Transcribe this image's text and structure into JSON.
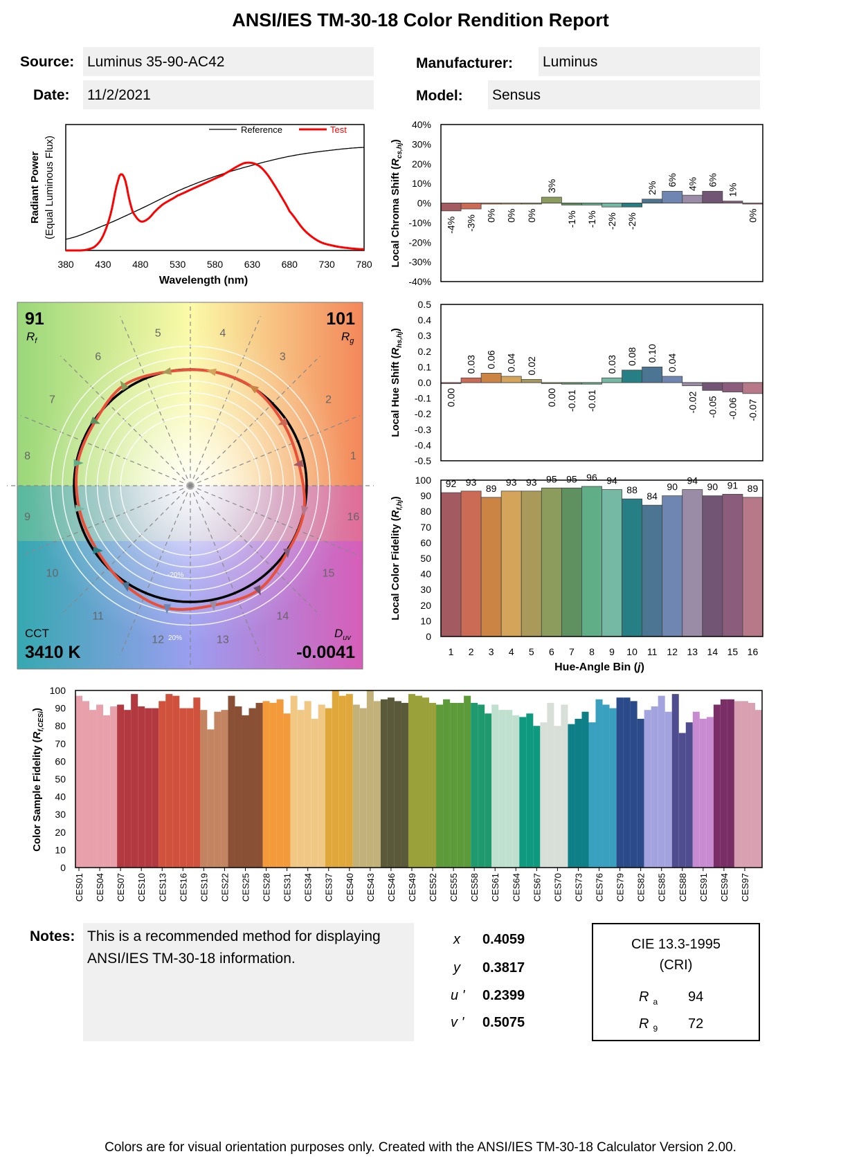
{
  "header": {
    "title": "ANSI/IES TM-30-18 Color Rendition Report",
    "source_label": "Source:",
    "source_value": "Luminus 35-90-AC42",
    "date_label": "Date:",
    "date_value": "11/2/2021",
    "manufacturer_label": "Manufacturer:",
    "manufacturer_value": "Luminus",
    "model_label": "Model:",
    "model_value": "Sensus"
  },
  "notes": {
    "label": "Notes:",
    "text": "This is a recommended method for displaying ANSI/IES TM-30-18 information."
  },
  "chromaticity": {
    "x_label": "x",
    "x_value": "0.4059",
    "y_label": "y",
    "y_value": "0.3817",
    "u_label": "u '",
    "u_value": "0.2399",
    "v_label": "v '",
    "v_value": "0.5075"
  },
  "cri_box": {
    "title": "CIE 13.3-1995",
    "subtitle": "(CRI)",
    "ra_label": "R",
    "ra_sub": "a",
    "ra_value": "94",
    "r9_label": "R",
    "r9_sub": "9",
    "r9_value": "72"
  },
  "footer": "Colors are for visual orientation purposes only. Created with the ANSI/IES TM-30-18 Calculator Version 2.00.",
  "vector_graphic": {
    "rf_value": "91",
    "rf_label": "R",
    "rf_sub": "f",
    "rg_value": "101",
    "rg_label": "R",
    "rg_sub": "g",
    "cct_label": "CCT",
    "cct_value": "3410 K",
    "duv_label": "D",
    "duv_sub": "uv",
    "duv_value": "-0.0041",
    "ring_labels": [
      "-20%",
      "20%"
    ],
    "bin_numbers": [
      "1",
      "2",
      "3",
      "4",
      "5",
      "6",
      "7",
      "8",
      "9",
      "10",
      "11",
      "12",
      "13",
      "14",
      "15",
      "16"
    ]
  },
  "chart_data": [
    {
      "type": "line",
      "id": "spd",
      "xlabel": "Wavelength (nm)",
      "ylabel": "Radiant Power",
      "ylabel2": "(Equal Luminous Flux)",
      "xlim": [
        380,
        780
      ],
      "xticks": [
        "380",
        "430",
        "480",
        "530",
        "580",
        "630",
        "680",
        "730",
        "780"
      ],
      "series": [
        {
          "name": "Reference",
          "color": "#000000",
          "x": [
            380,
            430,
            480,
            530,
            580,
            630,
            680,
            730,
            780
          ],
          "y": [
            0.1,
            0.22,
            0.37,
            0.53,
            0.66,
            0.76,
            0.84,
            0.89,
            0.92
          ]
        },
        {
          "name": "Test",
          "color": "#ff0000",
          "x": [
            380,
            400,
            410,
            420,
            430,
            440,
            450,
            455,
            460,
            465,
            470,
            480,
            490,
            500,
            510,
            520,
            530,
            550,
            570,
            590,
            600,
            610,
            620,
            630,
            640,
            650,
            660,
            670,
            680,
            700,
            720,
            740,
            760,
            780
          ],
          "y": [
            0,
            0,
            0.01,
            0.04,
            0.13,
            0.32,
            0.62,
            0.68,
            0.62,
            0.46,
            0.34,
            0.26,
            0.28,
            0.35,
            0.41,
            0.45,
            0.49,
            0.55,
            0.61,
            0.67,
            0.71,
            0.75,
            0.78,
            0.78,
            0.75,
            0.68,
            0.58,
            0.47,
            0.35,
            0.18,
            0.08,
            0.04,
            0.02,
            0.01
          ]
        }
      ]
    },
    {
      "type": "bar",
      "id": "chroma_shift",
      "ylabel": "Local Chroma Shift (Rcs,hj)",
      "ylim": [
        -40,
        40
      ],
      "yticks": [
        "40%",
        "30%",
        "20%",
        "10%",
        "0%",
        "-10%",
        "-20%",
        "-30%",
        "-40%"
      ],
      "categories": [
        "1",
        "2",
        "3",
        "4",
        "5",
        "6",
        "7",
        "8",
        "9",
        "10",
        "11",
        "12",
        "13",
        "14",
        "15",
        "16"
      ],
      "values": [
        -4,
        -3,
        0,
        0,
        0,
        3,
        -1,
        -1,
        -2,
        -2,
        2,
        6,
        4,
        6,
        1,
        0
      ],
      "labels": [
        "-4%",
        "-3%",
        "0%",
        "0%",
        "0%",
        "3%",
        "-1%",
        "-1%",
        "-2%",
        "-2%",
        "2%",
        "6%",
        "4%",
        "6%",
        "1%",
        "0%"
      ]
    },
    {
      "type": "bar",
      "id": "hue_shift",
      "ylabel": "Local Hue Shift (Rhs,hj)",
      "ylim": [
        -0.5,
        0.5
      ],
      "yticks": [
        "0.5",
        "0.4",
        "0.3",
        "0.2",
        "0.1",
        "0.0",
        "-0.1",
        "-0.2",
        "-0.3",
        "-0.4",
        "-0.5"
      ],
      "categories": [
        "1",
        "2",
        "3",
        "4",
        "5",
        "6",
        "7",
        "8",
        "9",
        "10",
        "11",
        "12",
        "13",
        "14",
        "15",
        "16"
      ],
      "values": [
        0.0,
        0.03,
        0.06,
        0.04,
        0.02,
        0.0,
        -0.01,
        -0.01,
        0.03,
        0.08,
        0.1,
        0.04,
        -0.02,
        -0.05,
        -0.06,
        -0.07
      ],
      "labels": [
        "0.00",
        "0.03",
        "0.06",
        "0.04",
        "0.02",
        "0.00",
        "-0.01",
        "-0.01",
        "0.03",
        "0.08",
        "0.10",
        "0.04",
        "-0.02",
        "-0.05",
        "-0.06",
        "-0.07"
      ]
    },
    {
      "type": "bar",
      "id": "local_fidelity",
      "ylabel": "Local Color Fidelity (Rf,hj)",
      "xlabel": "Hue-Angle Bin (j)",
      "ylim": [
        0,
        100
      ],
      "yticks": [
        "100",
        "90",
        "80",
        "70",
        "60",
        "50",
        "40",
        "30",
        "20",
        "10",
        "0"
      ],
      "categories": [
        "1",
        "2",
        "3",
        "4",
        "5",
        "6",
        "7",
        "8",
        "9",
        "10",
        "11",
        "12",
        "13",
        "14",
        "15",
        "16"
      ],
      "values": [
        92,
        93,
        89,
        93,
        93,
        95,
        95,
        96,
        94,
        88,
        84,
        90,
        94,
        90,
        91,
        89
      ],
      "labels": [
        "92",
        "93",
        "89",
        "93",
        "93",
        "95",
        "95",
        "96",
        "94",
        "88",
        "84",
        "90",
        "94",
        "90",
        "91",
        "89"
      ]
    },
    {
      "type": "bar",
      "id": "ces_fidelity",
      "ylabel": "Color Sample Fidelity (Rf,CESi)",
      "ylim": [
        0,
        100
      ],
      "yticks": [
        "100",
        "90",
        "80",
        "70",
        "60",
        "50",
        "40",
        "30",
        "20",
        "10",
        "0"
      ],
      "tick_labels": [
        "CES01",
        "CES04",
        "CES07",
        "CES10",
        "CES13",
        "CES16",
        "CES19",
        "CES22",
        "CES25",
        "CES28",
        "CES31",
        "CES34",
        "CES37",
        "CES40",
        "CES43",
        "CES46",
        "CES49",
        "CES52",
        "CES55",
        "CES58",
        "CES61",
        "CES64",
        "CES67",
        "CES70",
        "CES73",
        "CES76",
        "CES79",
        "CES82",
        "CES85",
        "CES88",
        "CES91",
        "CES94",
        "CES97"
      ],
      "values": [
        97,
        94,
        89,
        92,
        86,
        91,
        92,
        89,
        98,
        91,
        90,
        90,
        94,
        98,
        97,
        90,
        90,
        96,
        89,
        78,
        88,
        89,
        97,
        91,
        86,
        90,
        93,
        94,
        93,
        95,
        87,
        97,
        89,
        94,
        84,
        92,
        90,
        100,
        97,
        98,
        92,
        90,
        100,
        94,
        95,
        96,
        94,
        93,
        98,
        97,
        96,
        93,
        92,
        95,
        93,
        93,
        97,
        93,
        92,
        87,
        92,
        89,
        89,
        86,
        85,
        87,
        80,
        82,
        93,
        80,
        92,
        81,
        84,
        88,
        82,
        95,
        92,
        90,
        96,
        96,
        94,
        84,
        89,
        91,
        97,
        88,
        98,
        76,
        82,
        88,
        84,
        85,
        92,
        95,
        95,
        94,
        94,
        93,
        89
      ]
    }
  ]
}
